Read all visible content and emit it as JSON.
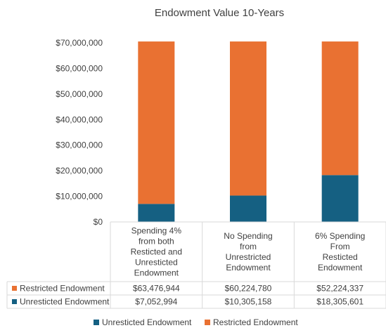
{
  "chart_data": {
    "type": "bar",
    "stacked": true,
    "title": "Endowment Value 10-Years",
    "categories": [
      [
        "Spending 4%",
        "from both",
        "Resticted and",
        "Unresticted",
        "Endowment"
      ],
      [
        "No Spending",
        "from",
        "Unrestricted",
        "Endowment"
      ],
      [
        "6% Spending",
        "From",
        "Resticted",
        "Endowment"
      ]
    ],
    "series": [
      {
        "name": "Unresticted Endowment",
        "color": "#156082",
        "values": [
          7052994,
          10305158,
          18305601
        ],
        "labels": [
          "$7,052,994",
          "$10,305,158",
          "$18,305,601"
        ]
      },
      {
        "name": "Restricted Endowment",
        "color": "#E97132",
        "values": [
          63476944,
          60224780,
          52224337
        ],
        "labels": [
          "$63,476,944",
          "$60,224,780",
          "$52,224,337"
        ]
      }
    ],
    "ylim": [
      0,
      70000000
    ],
    "yticks": [
      0,
      10000000,
      20000000,
      30000000,
      40000000,
      50000000,
      60000000,
      70000000
    ],
    "ytick_labels": [
      "$0",
      "$10,000,000",
      "$20,000,000",
      "$30,000,000",
      "$40,000,000",
      "$50,000,000",
      "$60,000,000",
      "$70,000,000"
    ],
    "data_table": true,
    "legend": "bottom",
    "grid": false
  }
}
